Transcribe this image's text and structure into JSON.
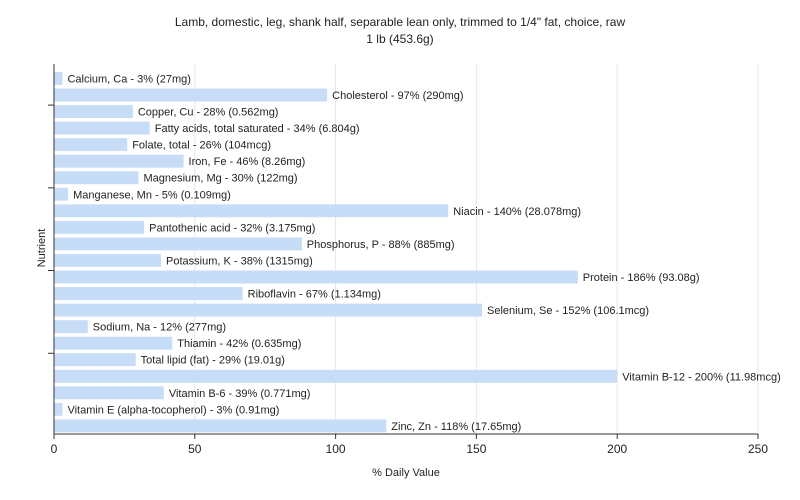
{
  "chart_data": {
    "type": "bar",
    "orientation": "horizontal",
    "title": "Lamb, domestic, leg, shank half, separable lean only, trimmed to 1/4\" fat, choice, raw",
    "subtitle": "1 lb (453.6g)",
    "xlabel": "% Daily Value",
    "ylabel": "Nutrient",
    "xlim": [
      0,
      250
    ],
    "xticks": [
      "0",
      "50",
      "100",
      "150",
      "200",
      "250"
    ],
    "grid": true,
    "bar_color": "#c6dcf7",
    "categories": [
      "Calcium, Ca",
      "Cholesterol",
      "Copper, Cu",
      "Fatty acids, total saturated",
      "Folate, total",
      "Iron, Fe",
      "Magnesium, Mg",
      "Manganese, Mn",
      "Niacin",
      "Pantothenic acid",
      "Phosphorus, P",
      "Potassium, K",
      "Protein",
      "Riboflavin",
      "Selenium, Se",
      "Sodium, Na",
      "Thiamin",
      "Total lipid (fat)",
      "Vitamin B-12",
      "Vitamin B-6",
      "Vitamin E (alpha-tocopherol)",
      "Zinc, Zn"
    ],
    "values": [
      3,
      97,
      28,
      34,
      26,
      46,
      30,
      5,
      140,
      32,
      88,
      38,
      186,
      67,
      152,
      12,
      42,
      29,
      200,
      39,
      3,
      118
    ],
    "labels": [
      "Calcium, Ca - 3% (27mg)",
      "Cholesterol - 97% (290mg)",
      "Copper, Cu - 28% (0.562mg)",
      "Fatty acids, total saturated - 34% (6.804g)",
      "Folate, total - 26% (104mcg)",
      "Iron, Fe - 46% (8.26mg)",
      "Magnesium, Mg - 30% (122mg)",
      "Manganese, Mn - 5% (0.109mg)",
      "Niacin - 140% (28.078mg)",
      "Pantothenic acid - 32% (3.175mg)",
      "Phosphorus, P - 88% (885mg)",
      "Potassium, K - 38% (1315mg)",
      "Protein - 186% (93.08g)",
      "Riboflavin - 67% (1.134mg)",
      "Selenium, Se - 152% (106.1mcg)",
      "Sodium, Na - 12% (277mg)",
      "Thiamin - 42% (0.635mg)",
      "Total lipid (fat) - 29% (19.01g)",
      "Vitamin B-12 - 200% (11.98mcg)",
      "Vitamin B-6 - 39% (0.771mg)",
      "Vitamin E (alpha-tocopherol) - 3% (0.91mg)",
      "Zinc, Zn - 118% (17.65mg)"
    ]
  }
}
